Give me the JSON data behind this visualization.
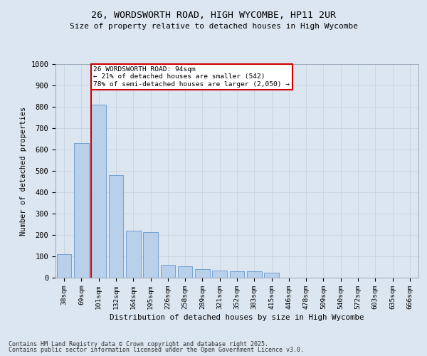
{
  "title1": "26, WORDSWORTH ROAD, HIGH WYCOMBE, HP11 2UR",
  "title2": "Size of property relative to detached houses in High Wycombe",
  "xlabel": "Distribution of detached houses by size in High Wycombe",
  "ylabel": "Number of detached properties",
  "categories": [
    "38sqm",
    "69sqm",
    "101sqm",
    "132sqm",
    "164sqm",
    "195sqm",
    "226sqm",
    "258sqm",
    "289sqm",
    "321sqm",
    "352sqm",
    "383sqm",
    "415sqm",
    "446sqm",
    "478sqm",
    "509sqm",
    "540sqm",
    "572sqm",
    "603sqm",
    "635sqm",
    "666sqm"
  ],
  "values": [
    110,
    630,
    810,
    480,
    220,
    215,
    60,
    55,
    40,
    35,
    30,
    30,
    25,
    0,
    0,
    0,
    0,
    0,
    0,
    0,
    0
  ],
  "bar_color": "#b8d0ea",
  "bar_edge_color": "#6699cc",
  "vline_color": "#cc0000",
  "vline_x_index": 2,
  "annotation_text": "26 WORDSWORTH ROAD: 94sqm\n← 21% of detached houses are smaller (542)\n78% of semi-detached houses are larger (2,050) →",
  "annotation_box_color": "#ffffff",
  "annotation_box_edge": "#cc0000",
  "grid_color": "#c8d4e4",
  "background_color": "#dce6f0",
  "footer1": "Contains HM Land Registry data © Crown copyright and database right 2025.",
  "footer2": "Contains public sector information licensed under the Open Government Licence v3.0.",
  "ylim": [
    0,
    1000
  ],
  "yticks": [
    0,
    100,
    200,
    300,
    400,
    500,
    600,
    700,
    800,
    900,
    1000
  ]
}
